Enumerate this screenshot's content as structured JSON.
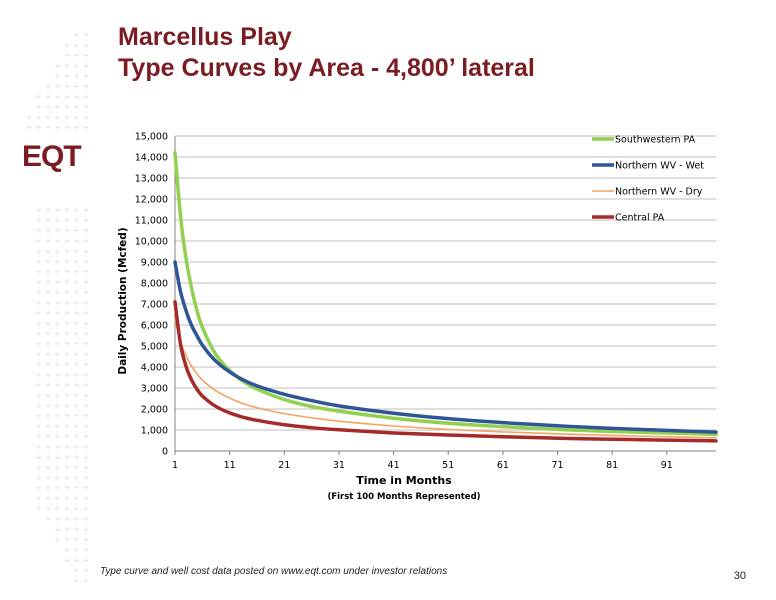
{
  "slide": {
    "title_line1": "Marcellus Play",
    "title_line2": "Type Curves by Area - 4,800’ lateral",
    "logo_text": "EQT",
    "footnote": "Type curve and well cost data posted on www.eqt.com under investor relations",
    "page_number": "30",
    "colors": {
      "title": "#7a1c22",
      "logo": "#7a1c22",
      "decor_dots": "#d9d9d9"
    }
  },
  "chart_data": {
    "type": "line",
    "title": "",
    "xlabel": "Time in Months",
    "xlabel_sub": "(First 100 Months Represented)",
    "ylabel": "Daily Production (Mcfed)",
    "xlim": [
      1,
      100
    ],
    "ylim": [
      0,
      15000
    ],
    "x_ticks": [
      1,
      11,
      21,
      31,
      41,
      51,
      61,
      71,
      81,
      91
    ],
    "y_ticks": [
      0,
      1000,
      2000,
      3000,
      4000,
      5000,
      6000,
      7000,
      8000,
      9000,
      10000,
      11000,
      12000,
      13000,
      14000,
      15000
    ],
    "y_tick_labels": [
      "0",
      "1,000",
      "2,000",
      "3,000",
      "4,000",
      "5,000",
      "6,000",
      "7,000",
      "8,000",
      "9,000",
      "10,000",
      "11,000",
      "12,000",
      "13,000",
      "14,000",
      "15,000"
    ],
    "grid": true,
    "legend_position": "top-right",
    "series": [
      {
        "name": "Southwestern PA",
        "color": "#92d050",
        "width": 3.5,
        "x": [
          1,
          2,
          3,
          4,
          5,
          6,
          8,
          10,
          13,
          16,
          21,
          26,
          31,
          41,
          51,
          61,
          71,
          81,
          91,
          100
        ],
        "values": [
          14200,
          11200,
          9200,
          7800,
          6700,
          5900,
          4800,
          4100,
          3400,
          2950,
          2450,
          2120,
          1900,
          1560,
          1320,
          1160,
          1030,
          930,
          860,
          790
        ]
      },
      {
        "name": "Northern WV - Wet",
        "color": "#2f5597",
        "width": 3.5,
        "x": [
          1,
          2,
          3,
          4,
          5,
          6,
          8,
          10,
          13,
          16,
          21,
          26,
          31,
          41,
          51,
          61,
          71,
          81,
          91,
          100
        ],
        "values": [
          9000,
          7600,
          6700,
          6000,
          5500,
          5050,
          4400,
          3950,
          3450,
          3100,
          2700,
          2400,
          2150,
          1800,
          1540,
          1350,
          1200,
          1080,
          980,
          900
        ]
      },
      {
        "name": "Northern WV - Dry",
        "color": "#f4a460",
        "width": 1.6,
        "x": [
          1,
          2,
          3,
          4,
          5,
          6,
          8,
          10,
          13,
          16,
          21,
          26,
          31,
          41,
          51,
          61,
          71,
          81,
          91,
          100
        ],
        "values": [
          6300,
          5200,
          4550,
          4050,
          3680,
          3380,
          2950,
          2650,
          2300,
          2060,
          1780,
          1580,
          1420,
          1190,
          1030,
          910,
          820,
          740,
          680,
          630
        ]
      },
      {
        "name": "Central PA",
        "color": "#a52a2a",
        "width": 3.5,
        "x": [
          1,
          2,
          3,
          4,
          5,
          6,
          8,
          10,
          13,
          16,
          21,
          26,
          31,
          41,
          51,
          61,
          71,
          81,
          91,
          100
        ],
        "values": [
          7100,
          5100,
          4050,
          3400,
          2950,
          2620,
          2200,
          1920,
          1640,
          1460,
          1250,
          1110,
          1010,
          860,
          760,
          680,
          610,
          560,
          520,
          480
        ]
      }
    ]
  }
}
